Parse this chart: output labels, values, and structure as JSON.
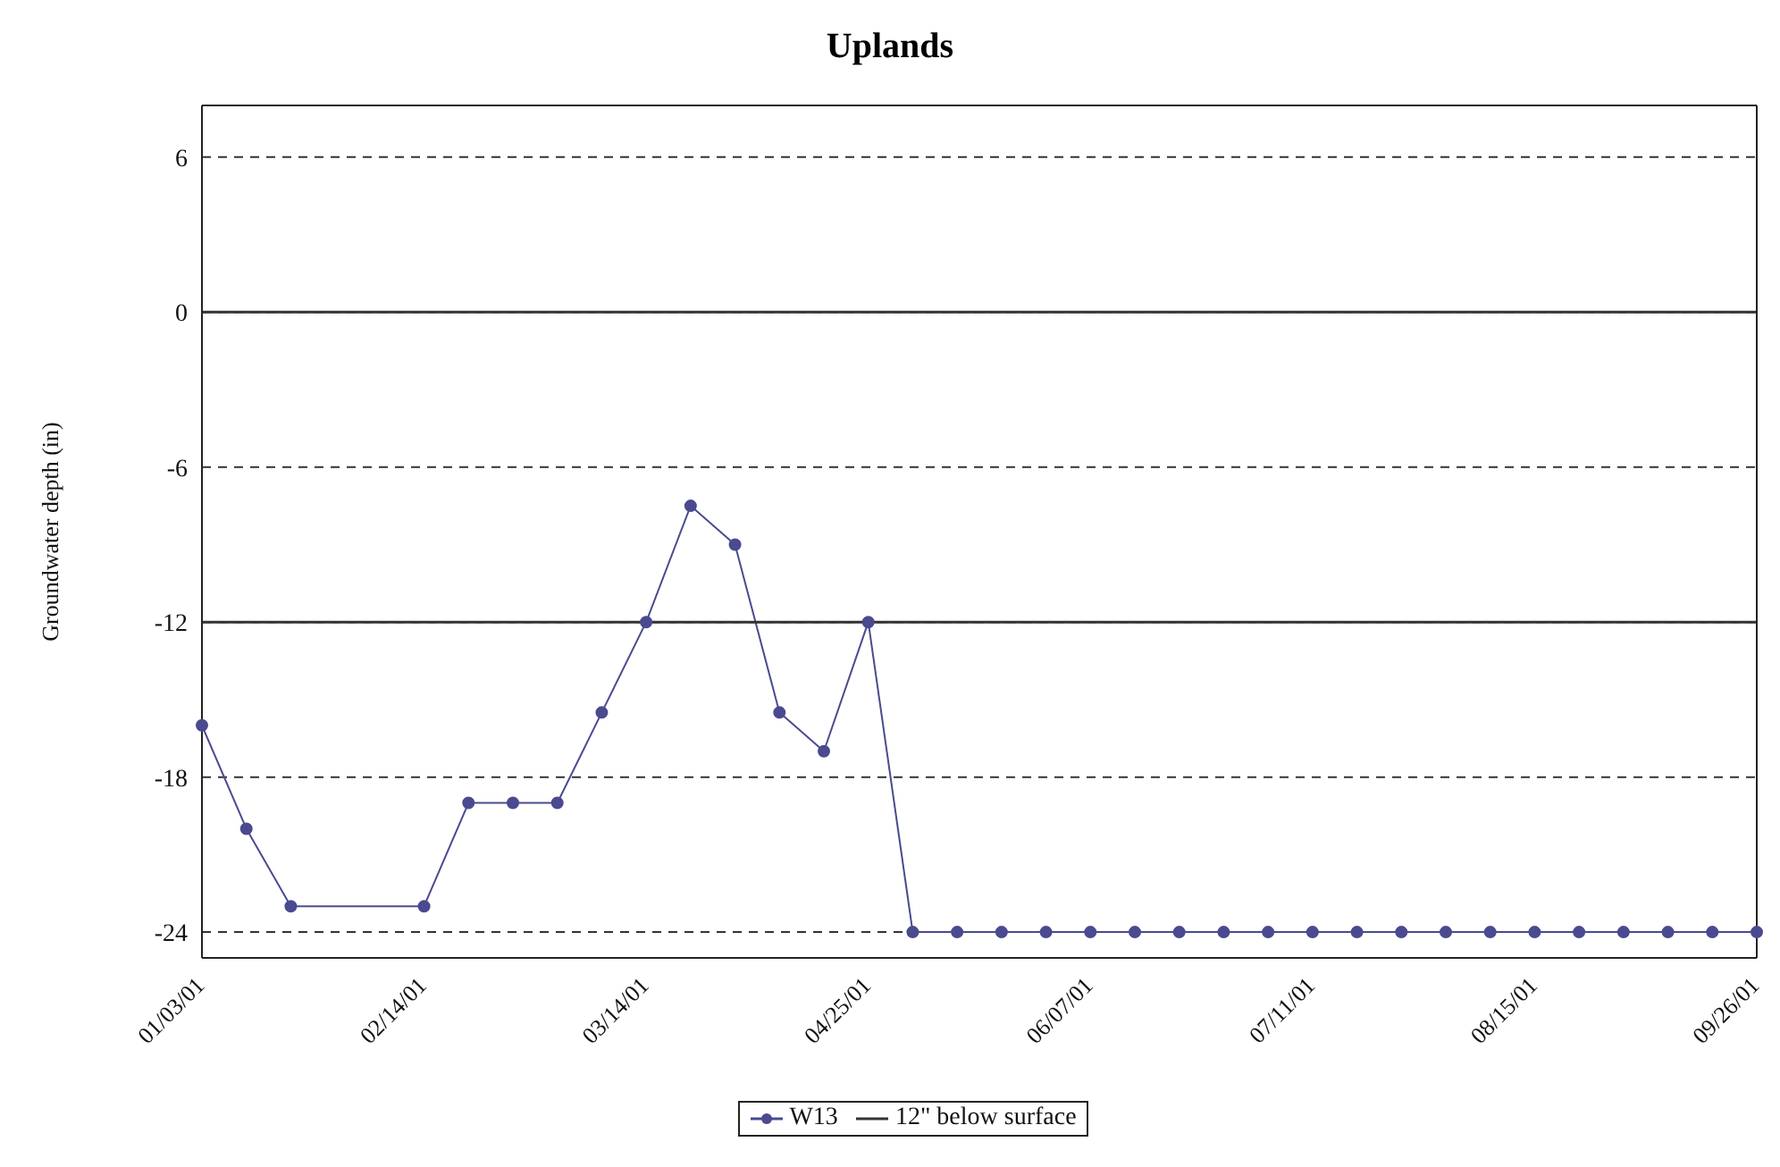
{
  "chart_data": {
    "type": "line",
    "title": "Uplands",
    "ylabel": "Groundwater depth (in)",
    "categories": [
      "01/03/01",
      null,
      null,
      null,
      null,
      "02/14/01",
      null,
      null,
      null,
      null,
      "03/14/01",
      null,
      null,
      null,
      null,
      "04/25/01",
      null,
      null,
      null,
      null,
      "06/07/01",
      null,
      null,
      null,
      null,
      "07/11/01",
      null,
      null,
      null,
      null,
      "08/15/01",
      null,
      null,
      null,
      null,
      "09/26/01"
    ],
    "series": [
      {
        "name": "W13",
        "color": "#4a4a90",
        "marker": "circle",
        "values": [
          -16,
          -20,
          -23,
          null,
          null,
          -23,
          -19,
          -19,
          -19,
          -15.5,
          -12,
          -7.5,
          -9,
          -15.5,
          -17,
          -12,
          -24,
          -24,
          -24,
          -24,
          -24,
          -24,
          -24,
          -24,
          -24,
          -24,
          -24,
          -24,
          -24,
          -24,
          -24,
          -24,
          -24,
          -24,
          -24,
          -24
        ]
      },
      {
        "name": "12\" below surface",
        "color": "#333333",
        "marker": "none",
        "values": [
          -12,
          -12,
          -12,
          -12,
          -12,
          -12,
          -12,
          -12,
          -12,
          -12,
          -12,
          -12,
          -12,
          -12,
          -12,
          -12,
          -12,
          -12,
          -12,
          -12,
          -12,
          -12,
          -12,
          -12,
          -12,
          -12,
          -12,
          -12,
          -12,
          -12,
          -12,
          -12,
          -12,
          -12,
          -12,
          -12
        ]
      }
    ],
    "ylim": [
      -25,
      8
    ],
    "yticks": [
      6,
      0,
      -6,
      -12,
      -18,
      -24
    ],
    "grid": "y",
    "line_style": "solid",
    "legend": "bottom",
    "ref_lines": [
      {
        "axis": "y",
        "value": 0,
        "label": null,
        "color": "#333333"
      }
    ]
  }
}
